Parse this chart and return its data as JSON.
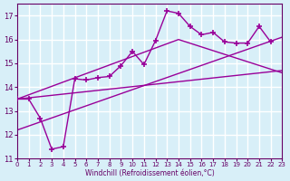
{
  "xlabel": "Windchill (Refroidissement éolien,°C)",
  "bg_color": "#d8eff8",
  "grid_color": "#ffffff",
  "line_color": "#990099",
  "xlim": [
    0,
    23
  ],
  "ylim": [
    11,
    17.5
  ],
  "yticks": [
    11,
    12,
    13,
    14,
    15,
    16,
    17
  ],
  "xticks": [
    0,
    1,
    2,
    3,
    4,
    5,
    6,
    7,
    8,
    9,
    10,
    11,
    12,
    13,
    14,
    15,
    16,
    17,
    18,
    19,
    20,
    21,
    22,
    23
  ],
  "scatter_x": [
    0,
    1,
    2,
    3,
    4,
    5,
    6,
    7,
    8,
    9,
    10,
    11,
    12,
    13,
    14,
    15,
    16,
    17,
    18,
    19,
    20,
    21,
    22
  ],
  "scatter_y": [
    13.5,
    13.5,
    12.7,
    11.4,
    11.5,
    14.35,
    14.3,
    14.4,
    14.45,
    14.9,
    15.5,
    14.95,
    15.95,
    17.2,
    17.1,
    16.55,
    16.2,
    16.3,
    15.9,
    15.85,
    15.85,
    16.55,
    15.9
  ],
  "line1_x": [
    0,
    23
  ],
  "line1_y": [
    13.5,
    14.7
  ],
  "line2_x": [
    0,
    23
  ],
  "line2_y": [
    12.2,
    16.1
  ],
  "line3_x": [
    0,
    14,
    23
  ],
  "line3_y": [
    13.5,
    16.0,
    14.6
  ]
}
